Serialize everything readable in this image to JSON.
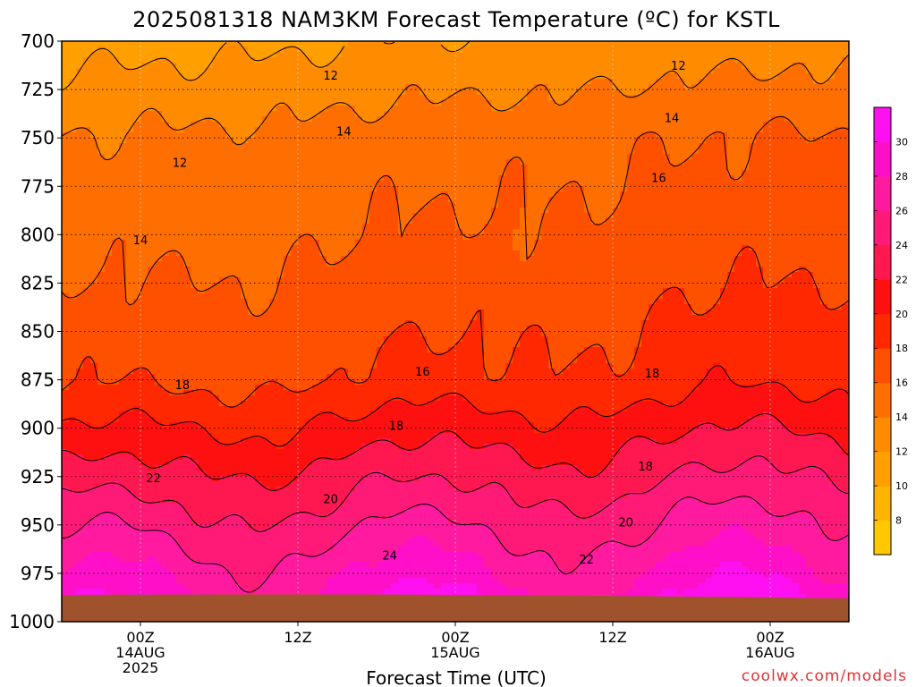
{
  "chart_data": {
    "type": "heatmap",
    "title": "2025081318 NAM3KM Forecast Temperature (ºC) for KSTL",
    "xlabel": "Forecast Time (UTC)",
    "ylabel": "",
    "credit": "coolwx.com/models",
    "y_ticks": [
      "700",
      "725",
      "750",
      "775",
      "800",
      "825",
      "850",
      "875",
      "900",
      "925",
      "950",
      "975",
      "1000"
    ],
    "y_range": [
      700,
      1000
    ],
    "x_range_hours_from_start": [
      0,
      60
    ],
    "x_ticks": [
      {
        "hour": 6,
        "lines": [
          "00Z",
          "14AUG",
          "2025"
        ]
      },
      {
        "hour": 18,
        "lines": [
          "12Z"
        ]
      },
      {
        "hour": 30,
        "lines": [
          "00Z",
          "15AUG"
        ]
      },
      {
        "hour": 42,
        "lines": [
          "12Z"
        ]
      },
      {
        "hour": 54,
        "lines": [
          "00Z",
          "16AUG"
        ]
      }
    ],
    "colorbar": {
      "labels": [
        "8",
        "10",
        "12",
        "14",
        "16",
        "18",
        "20",
        "22",
        "24",
        "26",
        "28",
        "30"
      ],
      "levels": [
        6,
        8,
        10,
        12,
        14,
        16,
        18,
        20,
        22,
        24,
        26,
        28,
        30,
        32
      ],
      "colors": [
        "#ffc800",
        "#ffb400",
        "#ffa000",
        "#ff8c00",
        "#ff6e00",
        "#ff5000",
        "#ff2800",
        "#ff1010",
        "#ff1850",
        "#ff1a78",
        "#ff1aa0",
        "#ff10c8",
        "#ff10f0"
      ]
    },
    "contour_labels": [
      {
        "text": "12",
        "hour": 20.5,
        "p": 718
      },
      {
        "text": "12",
        "hour": 47.0,
        "p": 713
      },
      {
        "text": "12",
        "hour": 9.0,
        "p": 763
      },
      {
        "text": "14",
        "hour": 21.5,
        "p": 747
      },
      {
        "text": "14",
        "hour": 46.5,
        "p": 740
      },
      {
        "text": "14",
        "hour": 6.0,
        "p": 803
      },
      {
        "text": "16",
        "hour": 45.5,
        "p": 771
      },
      {
        "text": "16",
        "hour": 27.5,
        "p": 871
      },
      {
        "text": "18",
        "hour": 9.2,
        "p": 878
      },
      {
        "text": "18",
        "hour": 25.5,
        "p": 899
      },
      {
        "text": "18",
        "hour": 44.5,
        "p": 920
      },
      {
        "text": "18",
        "hour": 45.0,
        "p": 872
      },
      {
        "text": "20",
        "hour": 20.5,
        "p": 937
      },
      {
        "text": "20",
        "hour": 43.0,
        "p": 949
      },
      {
        "text": "22",
        "hour": 7.0,
        "p": 926
      },
      {
        "text": "22",
        "hour": 40.0,
        "p": 968
      },
      {
        "text": "24",
        "hour": 25.0,
        "p": 966
      }
    ],
    "surface_colors": {
      "ground": "#a0522d"
    },
    "grid": true
  }
}
